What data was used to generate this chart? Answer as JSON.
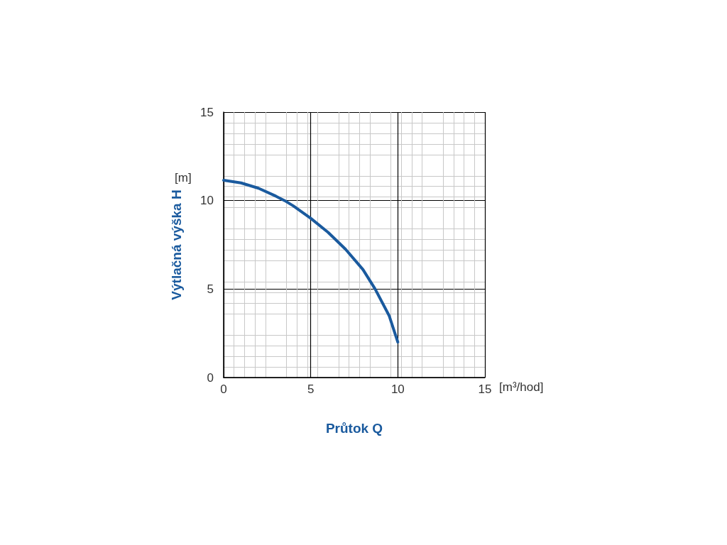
{
  "chart_data": {
    "type": "line",
    "xlabel": "Průtok Q",
    "ylabel": "Výtlačná výška H",
    "annotations": [
      "[m]",
      "[m³/hod]"
    ],
    "x": [
      0,
      1,
      2,
      3,
      3.5,
      4,
      5,
      6,
      7,
      8,
      8.7,
      9.5,
      10
    ],
    "series": [
      {
        "color": "#1a5a9e",
        "values": [
          11.15,
          11,
          10.7,
          10.25,
          10,
          9.7,
          9,
          8.2,
          7.25,
          6.1,
          5,
          3.5,
          2
        ]
      }
    ],
    "xlim": [
      0,
      15
    ],
    "ylim": [
      0,
      15
    ],
    "xticks": [
      0,
      5,
      10,
      15
    ],
    "yticks": [
      0,
      5,
      10,
      15
    ],
    "grid": true,
    "marker": "none",
    "line_style": "solid"
  }
}
